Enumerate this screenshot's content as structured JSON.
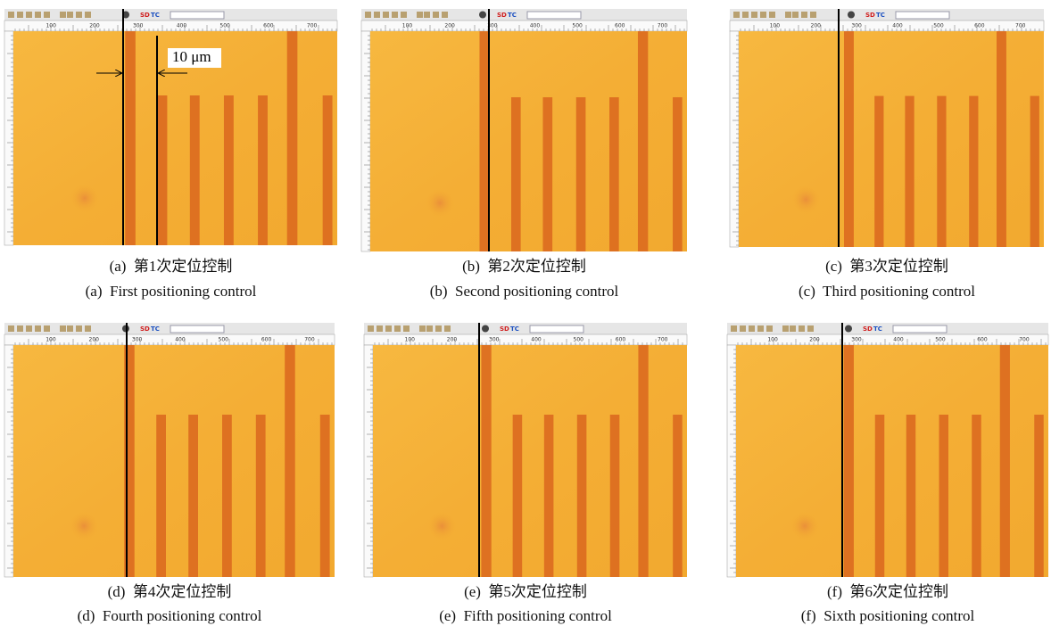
{
  "panels": [
    {
      "caption_zh": "(a)  第1次定位控制",
      "caption_en": "(a)  First positioning control"
    },
    {
      "caption_zh": "(b)  第2次定位控制",
      "caption_en": "(b)  Second positioning control"
    },
    {
      "caption_zh": "(c)  第3次定位控制",
      "caption_en": "(c)  Third positioning control"
    },
    {
      "caption_zh": "(d)  第4次定位控制",
      "caption_en": "(d)  Fourth positioning control"
    },
    {
      "caption_zh": "(e)  第5次定位控制",
      "caption_en": "(e)  Fifth positioning control"
    },
    {
      "caption_zh": "(f)  第6次定位控制",
      "caption_en": "(f)  Sixth positioning control"
    }
  ],
  "annotation": "10 μm",
  "ruler_labels": [
    "100",
    "200",
    "300",
    "400",
    "500",
    "600",
    "700"
  ],
  "toolbar_labels": [
    "SD",
    "TC"
  ]
}
